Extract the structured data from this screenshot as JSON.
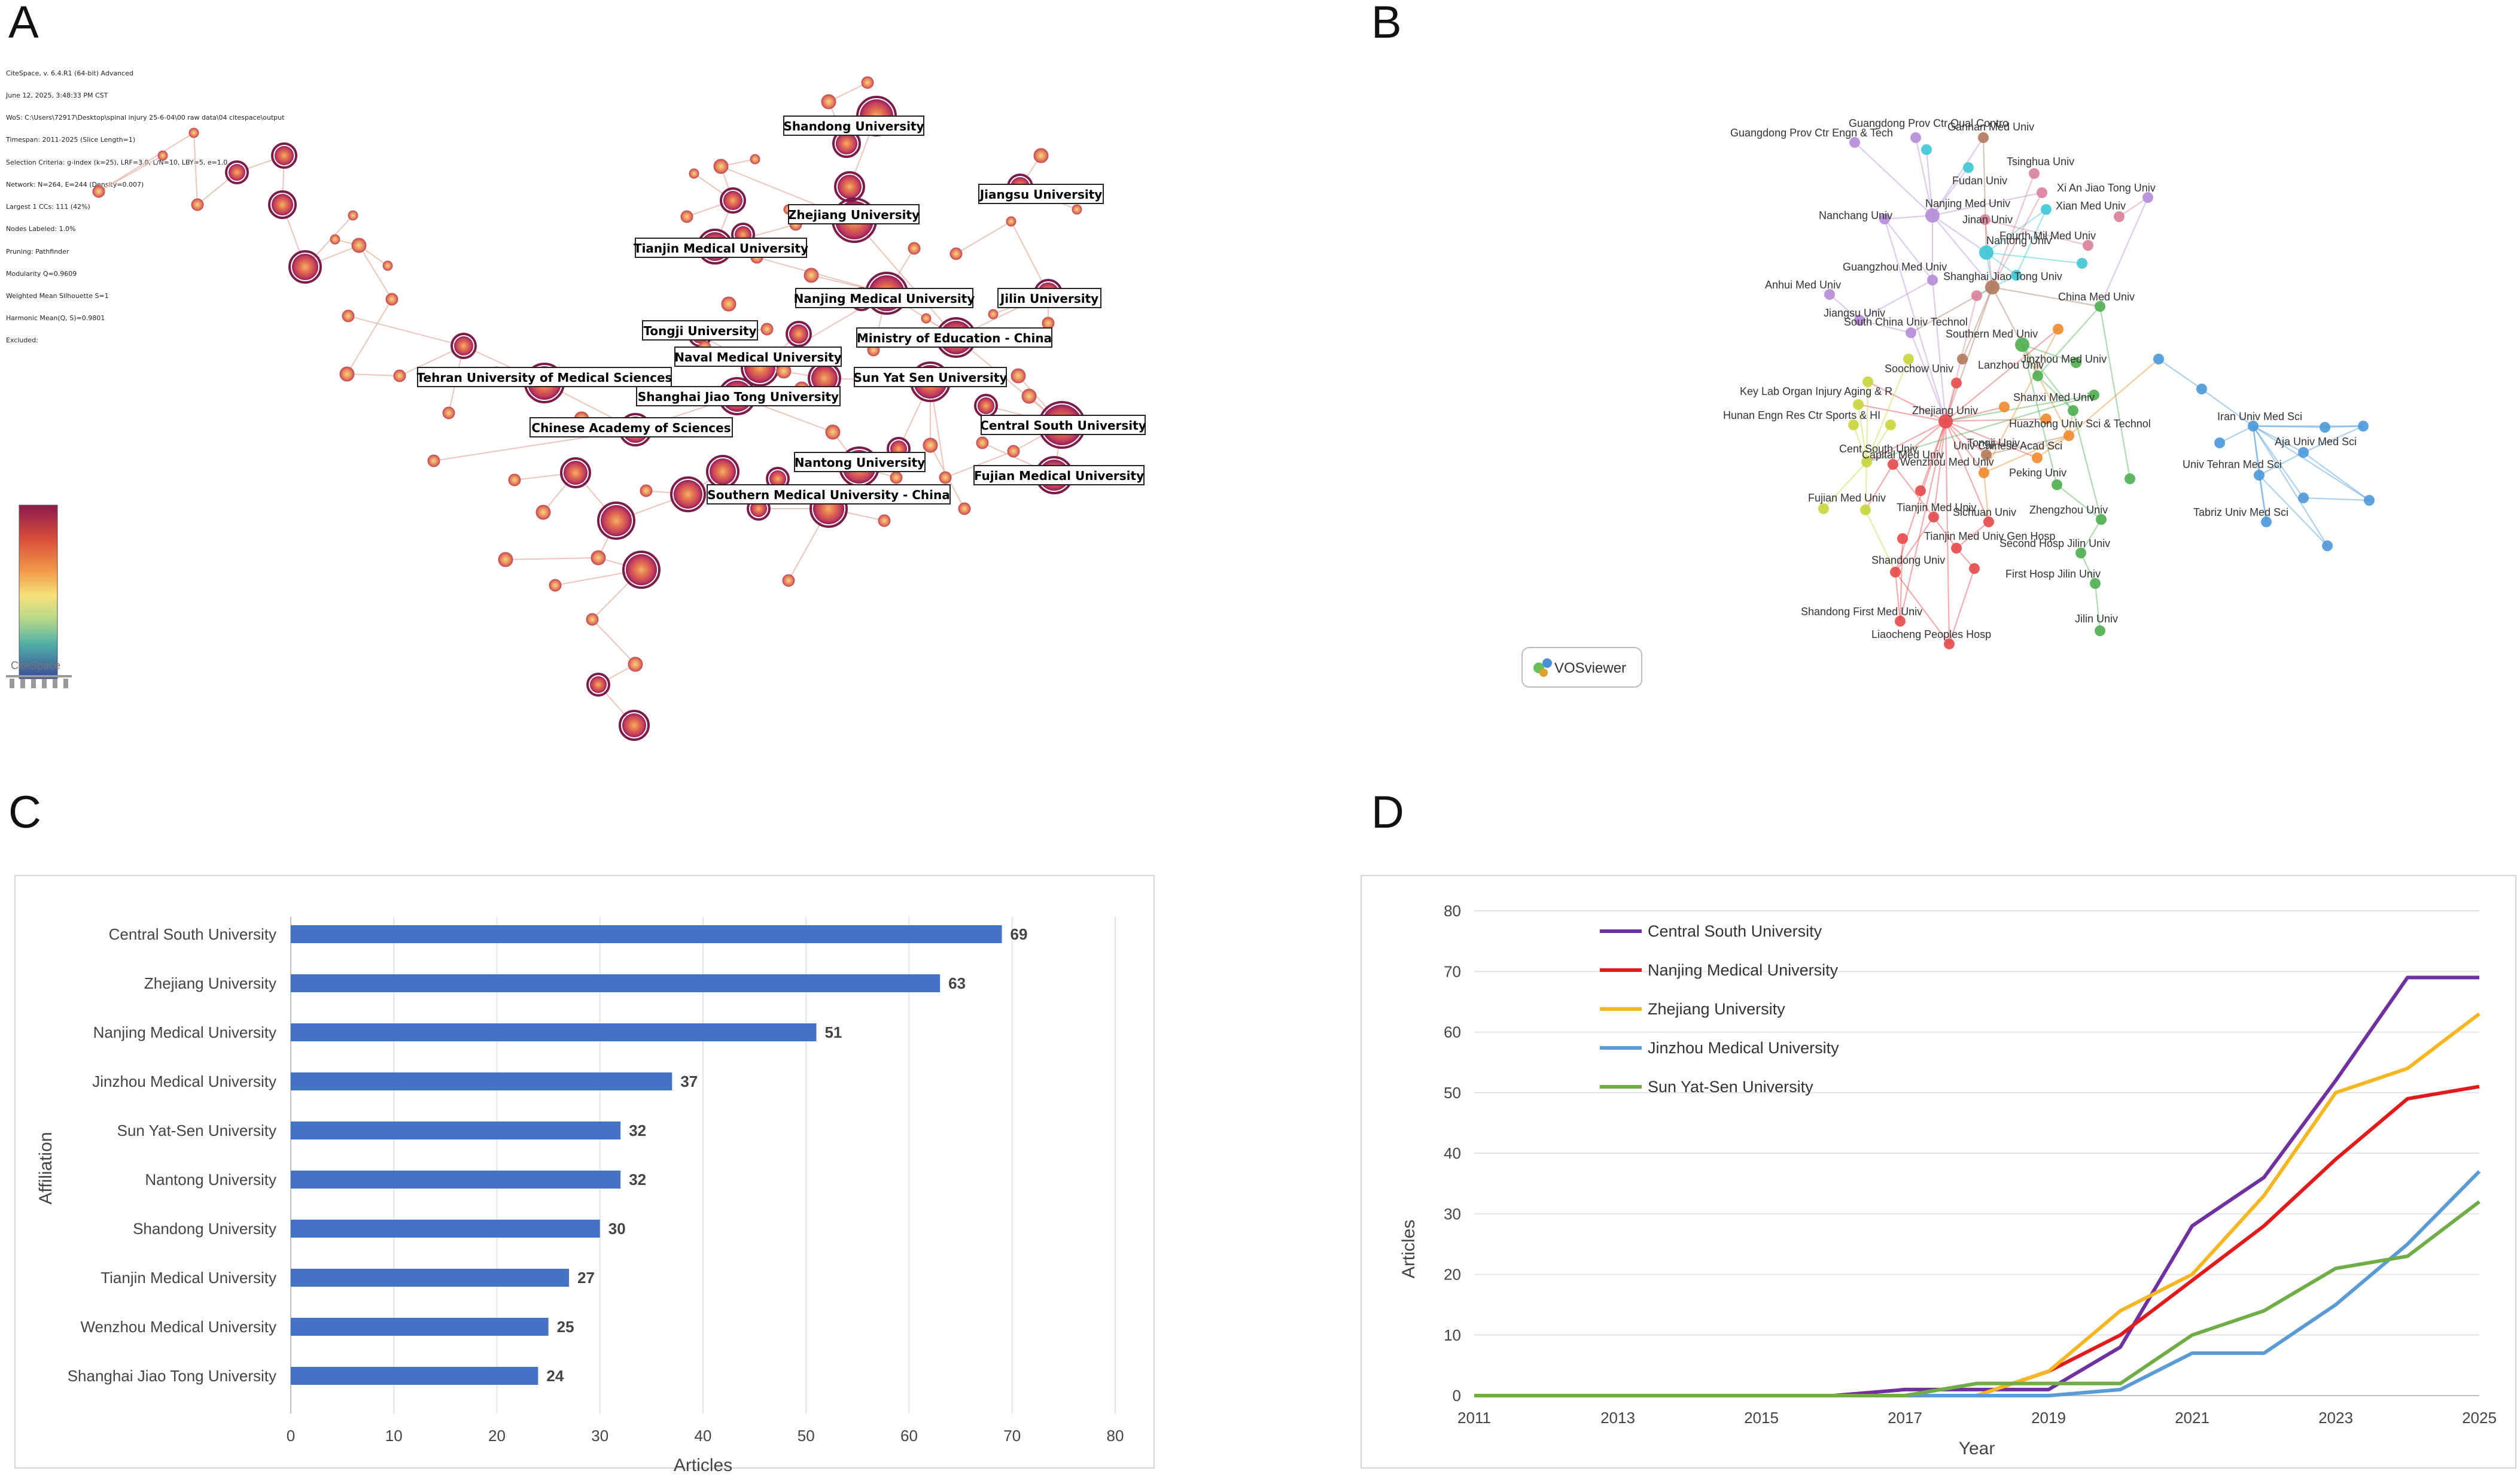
{
  "panels": {
    "a": "A",
    "b": "B",
    "c": "C",
    "d": "D"
  },
  "citespace": {
    "info_lines": [
      "CiteSpace, v. 6.4.R1 (64-bit) Advanced",
      "June 12, 2025, 3:48:33 PM CST",
      "WoS: C:\\Users\\72917\\Desktop\\spinal injury 25-6-04\\00 raw data\\04 citespace\\output",
      "Timespan: 2011-2025 (Slice Length=1)",
      "Selection Criteria: g-index (k=25), LRF=3.0, L/N=10, LBY=5, e=1.0",
      "Network: N=264, E=244 (Density=0.007)",
      "Largest 1 CCs: 111 (42%)",
      "Nodes Labeled: 1.0%",
      "Pruning: Pathfinder",
      "Modularity Q=0.9609",
      "Weighted Mean Silhouette S=1",
      "Harmonic Mean(Q, S)=0.9801",
      "Excluded:"
    ],
    "logo_text": "CiteSpace",
    "labels": [
      "Shandong University",
      "Zhejiang University",
      "Jiangsu University",
      "Tianjin Medical University",
      "Nanjing Medical University",
      "Jilin University",
      "Tongji University",
      "Ministry of Education - China",
      "Naval Medical University",
      "Tehran University of Medical Sciences",
      "Sun Yat Sen University",
      "Shanghai Jiao Tong University",
      "Chinese Academy of Sciences",
      "Central South University",
      "Nantong University",
      "Fujian Medical University",
      "Southern Medical University - China"
    ]
  },
  "vosviewer": {
    "logo_text": "VOSviewer",
    "labels": [
      "Guangdong Prov Ctr Qual Contro",
      "Guangdong Prov Ctr Engn & Tech",
      "Gannan Med Univ",
      "Tsinghua Univ",
      "Xi An Jiao Tong Univ",
      "Xian Med Univ",
      "Fudan Univ",
      "Nanchang Univ",
      "Nanjing Med Univ",
      "Jinan Univ",
      "Fourth Mil Med Univ",
      "Nantong Univ",
      "Guangzhou Med Univ",
      "Anhui Med Univ",
      "Shanghai Jiao Tong Univ",
      "China Med Univ",
      "Jiangsu Univ",
      "South China Univ Technol",
      "Southern Med Univ",
      "Jinzhou Med Univ",
      "Soochow Univ",
      "Lanzhou Univ",
      "Key Lab Organ Injury Aging & R",
      "Shanxi Med Univ",
      "Hunan Engn Res Ctr Sports & HI",
      "Zhejiang Univ",
      "Huazhong Univ Sci & Technol",
      "Iran Univ Med Sci",
      "Tongji Univ",
      "Cent South Univ",
      "Univ Chinese Acad Sci",
      "Capital Med Univ",
      "Aja Univ Med Sci",
      "Wenzhou Med Univ",
      "Univ Tehran Med Sci",
      "Peking Univ",
      "Fujian Med Univ",
      "Tianjin Med Univ",
      "Zhengzhou Univ",
      "Tabriz Univ Med Sci",
      "Sichuan Univ",
      "Tianjin Med Univ Gen Hosp",
      "Second Hosp Jilin Univ",
      "Shandong Univ",
      "First Hosp Jilin Univ",
      "Shandong First Med Univ",
      "Jilin Univ",
      "Liaocheng Peoples Hosp"
    ]
  },
  "colors": {
    "bar": "#4472c4",
    "csp": "#7a1c4a",
    "lines": [
      "#7030a0",
      "#e31a1c",
      "#f5b622",
      "#5b9bd5",
      "#70ad47"
    ]
  },
  "chart_data": [
    {
      "type": "bar",
      "orientation": "horizontal",
      "categories": [
        "Central South University",
        "Zhejiang University",
        "Nanjing Medical University",
        "Jinzhou Medical University",
        "Sun Yat-Sen University",
        "Nantong University",
        "Shandong University",
        "Tianjin Medical University",
        "Wenzhou Medical University",
        "Shanghai Jiao Tong University"
      ],
      "values": [
        69,
        63,
        51,
        37,
        32,
        32,
        30,
        27,
        25,
        24
      ],
      "xlabel": "Articles",
      "ylabel": "Affiliation",
      "xlim": [
        0,
        80
      ],
      "xticks": [
        "0",
        "10",
        "20",
        "30",
        "40",
        "50",
        "60",
        "70",
        "80"
      ],
      "grid": true
    },
    {
      "type": "line",
      "x": [
        2011,
        2012,
        2013,
        2014,
        2015,
        2016,
        2017,
        2018,
        2019,
        2020,
        2021,
        2022,
        2023,
        2024,
        2025
      ],
      "xticks": [
        "2011",
        "2013",
        "2015",
        "2017",
        "2019",
        "2021",
        "2023",
        "2025"
      ],
      "yticks": [
        "0",
        "10",
        "20",
        "30",
        "40",
        "50",
        "60",
        "70",
        "80"
      ],
      "xlabel": "Year",
      "ylabel": "Articles",
      "ylim": [
        0,
        80
      ],
      "legend": "top-left",
      "grid": true,
      "series": [
        {
          "name": "Central South University",
          "values": [
            0,
            0,
            0,
            0,
            0,
            0,
            1,
            1,
            1,
            8,
            28,
            36,
            52,
            69,
            69
          ]
        },
        {
          "name": "Nanjing Medical University",
          "values": [
            0,
            0,
            0,
            0,
            0,
            0,
            0,
            0,
            4,
            10,
            19,
            28,
            39,
            49,
            51
          ]
        },
        {
          "name": "Zhejiang University",
          "values": [
            0,
            0,
            0,
            0,
            0,
            0,
            0,
            0,
            4,
            14,
            20,
            33,
            50,
            54,
            63
          ]
        },
        {
          "name": "Jinzhou Medical University",
          "values": [
            0,
            0,
            0,
            0,
            0,
            0,
            0,
            0,
            0,
            1,
            7,
            7,
            15,
            25,
            37
          ]
        },
        {
          "name": "Sun Yat-Sen University",
          "values": [
            0,
            0,
            0,
            0,
            0,
            0,
            0,
            2,
            2,
            2,
            10,
            14,
            21,
            23,
            32
          ]
        }
      ]
    }
  ]
}
